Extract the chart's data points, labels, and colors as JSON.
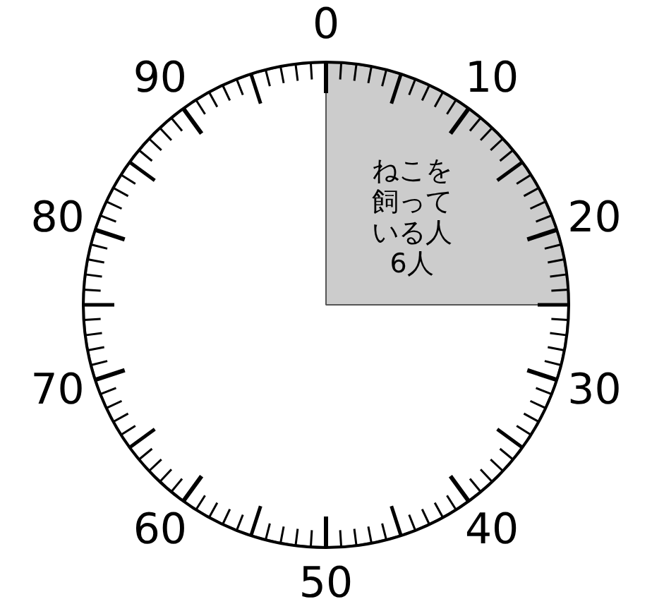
{
  "chart_data": {
    "type": "pie",
    "categories": [
      "ねこを飼っている人",
      null
    ],
    "values": [
      6,
      18
    ],
    "value_labels": [
      "6人",
      null
    ],
    "colors": [
      "#cccccc",
      "#ffffff"
    ],
    "annotations": [
      "0",
      "10",
      "20",
      "30",
      "40",
      "50",
      "60",
      "70",
      "80",
      "90"
    ],
    "legend": false
  }
}
